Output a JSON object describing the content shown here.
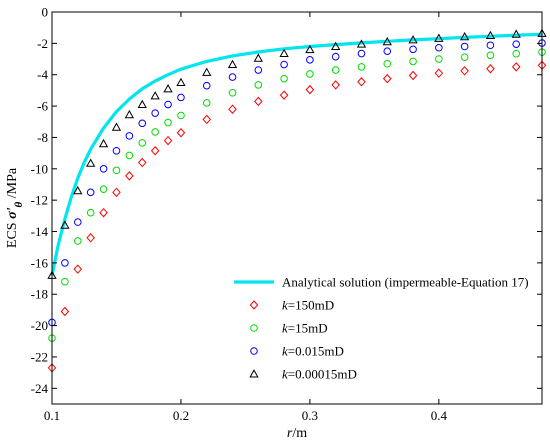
{
  "chart_data": {
    "type": "scatter",
    "xlabel_italic": "r",
    "xlabel_unit": "/m",
    "ylabel_prefix": "ECS ",
    "ylabel_symbol": "σ'",
    "ylabel_sub": "θ",
    "ylabel_unit": " /MPa",
    "xlim": [
      0.1,
      0.48
    ],
    "ylim": [
      -25,
      0
    ],
    "xticks": [
      0.1,
      0.2,
      0.3,
      0.4
    ],
    "xtick_labels": [
      "0.1",
      "0.2",
      "0.3",
      "0.4"
    ],
    "yticks": [
      0,
      -2,
      -4,
      -6,
      -8,
      -10,
      -12,
      -14,
      -16,
      -18,
      -20,
      -22,
      -24
    ],
    "ytick_labels": [
      "0",
      "-2",
      "-4",
      "-6",
      "-8",
      "-10",
      "-12",
      "-14",
      "-16",
      "-18",
      "-20",
      "-22",
      "-24"
    ],
    "legend_position": "bottom-right",
    "series": [
      {
        "name": "Analytical solution (impermeable-Equation 17)",
        "kind": "line",
        "color": "#00e5ee",
        "x": [
          0.1,
          0.105,
          0.11,
          0.115,
          0.12,
          0.125,
          0.13,
          0.14,
          0.15,
          0.16,
          0.17,
          0.18,
          0.19,
          0.2,
          0.22,
          0.24,
          0.26,
          0.28,
          0.3,
          0.32,
          0.34,
          0.36,
          0.38,
          0.4,
          0.42,
          0.44,
          0.46,
          0.48
        ],
        "y": [
          -16.8,
          -14.8,
          -13.2,
          -11.8,
          -10.6,
          -9.6,
          -8.75,
          -7.4,
          -6.35,
          -5.55,
          -4.9,
          -4.4,
          -4.0,
          -3.65,
          -3.15,
          -2.8,
          -2.55,
          -2.35,
          -2.2,
          -2.08,
          -1.97,
          -1.87,
          -1.78,
          -1.7,
          -1.62,
          -1.55,
          -1.48,
          -1.42
        ]
      },
      {
        "name_var": "k",
        "name_value": "=150mD",
        "kind": "marker",
        "marker": "diamond",
        "color": "#ff0000",
        "x": [
          0.1,
          0.11,
          0.12,
          0.13,
          0.14,
          0.15,
          0.16,
          0.17,
          0.18,
          0.19,
          0.2,
          0.22,
          0.24,
          0.26,
          0.28,
          0.3,
          0.32,
          0.34,
          0.36,
          0.38,
          0.4,
          0.42,
          0.44,
          0.46,
          0.48
        ],
        "y": [
          -22.7,
          -19.1,
          -16.4,
          -14.4,
          -12.8,
          -11.5,
          -10.45,
          -9.6,
          -8.85,
          -8.2,
          -7.7,
          -6.85,
          -6.2,
          -5.7,
          -5.3,
          -4.95,
          -4.65,
          -4.45,
          -4.25,
          -4.05,
          -3.9,
          -3.75,
          -3.62,
          -3.5,
          -3.4
        ]
      },
      {
        "name_var": "k",
        "name_value": "=15mD",
        "kind": "marker",
        "marker": "circle",
        "color": "#00dd00",
        "x": [
          0.1,
          0.11,
          0.12,
          0.13,
          0.14,
          0.15,
          0.16,
          0.17,
          0.18,
          0.19,
          0.2,
          0.22,
          0.24,
          0.26,
          0.28,
          0.3,
          0.32,
          0.34,
          0.36,
          0.38,
          0.4,
          0.42,
          0.44,
          0.46,
          0.48
        ],
        "y": [
          -20.8,
          -17.2,
          -14.6,
          -12.8,
          -11.3,
          -10.1,
          -9.15,
          -8.35,
          -7.65,
          -7.05,
          -6.6,
          -5.8,
          -5.15,
          -4.65,
          -4.25,
          -3.95,
          -3.7,
          -3.5,
          -3.3,
          -3.15,
          -3.0,
          -2.88,
          -2.76,
          -2.66,
          -2.56
        ]
      },
      {
        "name_var": "k",
        "name_value": "=0.015mD",
        "kind": "marker",
        "marker": "circle",
        "color": "#0000ff",
        "x": [
          0.1,
          0.11,
          0.12,
          0.13,
          0.14,
          0.15,
          0.16,
          0.17,
          0.18,
          0.19,
          0.2,
          0.22,
          0.24,
          0.26,
          0.28,
          0.3,
          0.32,
          0.34,
          0.36,
          0.38,
          0.4,
          0.42,
          0.44,
          0.46,
          0.48
        ],
        "y": [
          -19.8,
          -16.0,
          -13.4,
          -11.5,
          -10.0,
          -8.85,
          -7.9,
          -7.1,
          -6.45,
          -5.9,
          -5.45,
          -4.7,
          -4.15,
          -3.7,
          -3.35,
          -3.05,
          -2.85,
          -2.65,
          -2.5,
          -2.38,
          -2.28,
          -2.2,
          -2.12,
          -2.05,
          -1.98
        ]
      },
      {
        "name_var": "k",
        "name_value": "=0.00015mD",
        "kind": "marker",
        "marker": "triangle",
        "color": "#000000",
        "x": [
          0.1,
          0.11,
          0.12,
          0.13,
          0.14,
          0.15,
          0.16,
          0.17,
          0.18,
          0.19,
          0.2,
          0.22,
          0.24,
          0.26,
          0.28,
          0.3,
          0.32,
          0.34,
          0.36,
          0.38,
          0.4,
          0.42,
          0.44,
          0.46,
          0.48
        ],
        "y": [
          -16.8,
          -13.6,
          -11.4,
          -9.65,
          -8.4,
          -7.35,
          -6.55,
          -5.9,
          -5.35,
          -4.9,
          -4.5,
          -3.85,
          -3.35,
          -2.95,
          -2.65,
          -2.4,
          -2.2,
          -2.05,
          -1.9,
          -1.78,
          -1.68,
          -1.58,
          -1.5,
          -1.42,
          -1.36
        ]
      }
    ]
  }
}
